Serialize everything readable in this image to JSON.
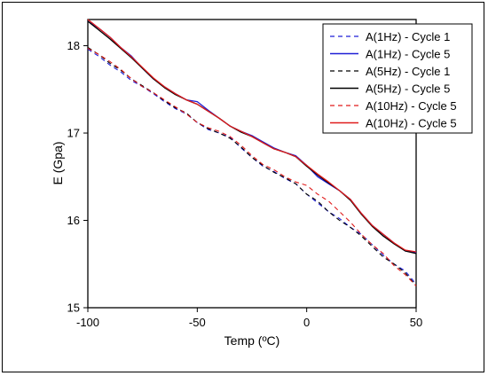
{
  "chart_data": {
    "type": "line",
    "xlabel": "Temp (ºC)",
    "ylabel": "E (Gpa)",
    "xlim": [
      -100,
      50
    ],
    "ylim": [
      15,
      18.3
    ],
    "x_ticks": [
      -100,
      -50,
      0,
      50
    ],
    "x_tick_labels": [
      "-100",
      "-50",
      "0",
      "50"
    ],
    "y_ticks": [
      15,
      16,
      17,
      18
    ],
    "y_tick_labels": [
      "15",
      "16",
      "17",
      "18"
    ],
    "grid": false,
    "legend_position": "top-right",
    "x": [
      -100,
      -95,
      -90,
      -85,
      -80,
      -75,
      -70,
      -65,
      -60,
      -55,
      -50,
      -45,
      -40,
      -35,
      -30,
      -25,
      -20,
      -15,
      -10,
      -5,
      0,
      5,
      10,
      15,
      20,
      25,
      30,
      35,
      40,
      45,
      50
    ],
    "series": [
      {
        "name": "A(1Hz) - Cycle 1",
        "color": "#1f1fd6",
        "dash": true,
        "values": [
          17.96,
          17.88,
          17.78,
          17.7,
          17.6,
          17.53,
          17.45,
          17.36,
          17.28,
          17.22,
          17.12,
          17.04,
          17.0,
          16.95,
          16.83,
          16.72,
          16.62,
          16.56,
          16.48,
          16.42,
          16.3,
          16.2,
          16.1,
          16.02,
          15.92,
          15.84,
          15.72,
          15.6,
          15.5,
          15.42,
          15.27
        ]
      },
      {
        "name": "A(1Hz) - Cycle 5",
        "color": "#1f1fd6",
        "dash": false,
        "values": [
          18.28,
          18.2,
          18.1,
          17.98,
          17.88,
          17.74,
          17.62,
          17.53,
          17.45,
          17.38,
          17.36,
          17.26,
          17.17,
          17.08,
          17.02,
          16.97,
          16.9,
          16.83,
          16.78,
          16.74,
          16.63,
          16.5,
          16.42,
          16.34,
          16.24,
          16.08,
          15.94,
          15.84,
          15.74,
          15.65,
          15.63
        ]
      },
      {
        "name": "A(5Hz) - Cycle 1",
        "color": "#000000",
        "dash": true,
        "values": [
          17.98,
          17.9,
          17.8,
          17.72,
          17.62,
          17.54,
          17.46,
          17.37,
          17.29,
          17.23,
          17.12,
          17.05,
          17.0,
          16.94,
          16.84,
          16.72,
          16.63,
          16.55,
          16.49,
          16.42,
          16.3,
          16.22,
          16.1,
          16.0,
          15.92,
          15.82,
          15.7,
          15.58,
          15.5,
          15.4,
          15.25
        ]
      },
      {
        "name": "A(5Hz) - Cycle 5",
        "color": "#000000",
        "dash": false,
        "values": [
          18.28,
          18.18,
          18.08,
          17.97,
          17.86,
          17.74,
          17.62,
          17.52,
          17.44,
          17.38,
          17.33,
          17.25,
          17.17,
          17.08,
          17.01,
          16.96,
          16.89,
          16.82,
          16.78,
          16.73,
          16.62,
          16.52,
          16.43,
          16.34,
          16.23,
          16.07,
          15.93,
          15.82,
          15.73,
          15.65,
          15.62
        ]
      },
      {
        "name": "A(10Hz) - Cycle 5",
        "color": "#e01b1b",
        "dash": true,
        "values": [
          17.97,
          17.9,
          17.82,
          17.73,
          17.62,
          17.53,
          17.46,
          17.38,
          17.3,
          17.22,
          17.12,
          17.06,
          17.02,
          16.96,
          16.86,
          16.74,
          16.64,
          16.58,
          16.5,
          16.44,
          16.4,
          16.3,
          16.22,
          16.1,
          15.98,
          15.84,
          15.72,
          15.62,
          15.48,
          15.38,
          15.25
        ]
      },
      {
        "name": "A(10Hz) - Cycle 5",
        "color": "#e01b1b",
        "dash": false,
        "values": [
          18.3,
          18.2,
          18.1,
          17.98,
          17.87,
          17.75,
          17.63,
          17.53,
          17.45,
          17.38,
          17.33,
          17.25,
          17.17,
          17.08,
          17.02,
          16.96,
          16.89,
          16.82,
          16.78,
          16.73,
          16.63,
          16.53,
          16.44,
          16.34,
          16.24,
          16.08,
          15.94,
          15.84,
          15.74,
          15.66,
          15.64
        ]
      }
    ]
  }
}
